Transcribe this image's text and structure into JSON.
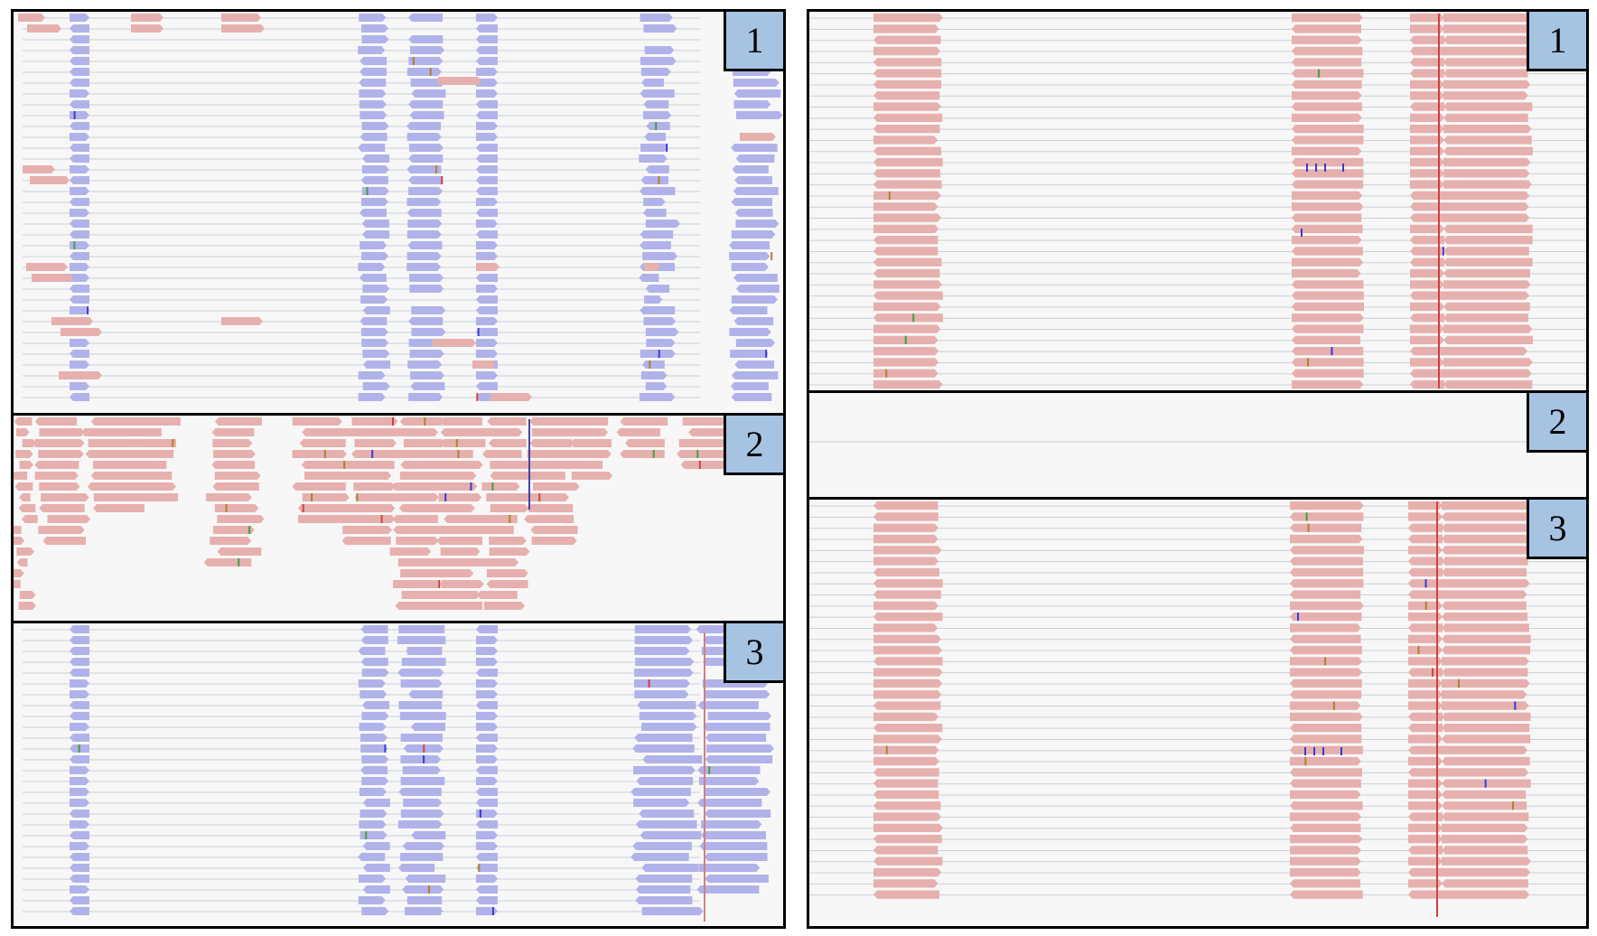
{
  "colors": {
    "forward_read": "#e6b0ae",
    "reverse_read": "#b2b2ea",
    "background": "#f7f7f7",
    "label_box": "#a6c3e2",
    "border": "#000000"
  },
  "left_panel": {
    "tracks": [
      {
        "label": "1",
        "read_strand": "reverse",
        "stack": "dense"
      },
      {
        "label": "2",
        "read_strand": "forward",
        "stack": "scattered"
      },
      {
        "label": "3",
        "read_strand": "reverse",
        "stack": "dense"
      }
    ]
  },
  "right_panel": {
    "tracks": [
      {
        "label": "1",
        "read_strand": "forward",
        "stack": "dense"
      },
      {
        "label": "2",
        "read_strand": "none",
        "stack": "empty"
      },
      {
        "label": "3",
        "read_strand": "forward",
        "stack": "dense"
      }
    ]
  }
}
